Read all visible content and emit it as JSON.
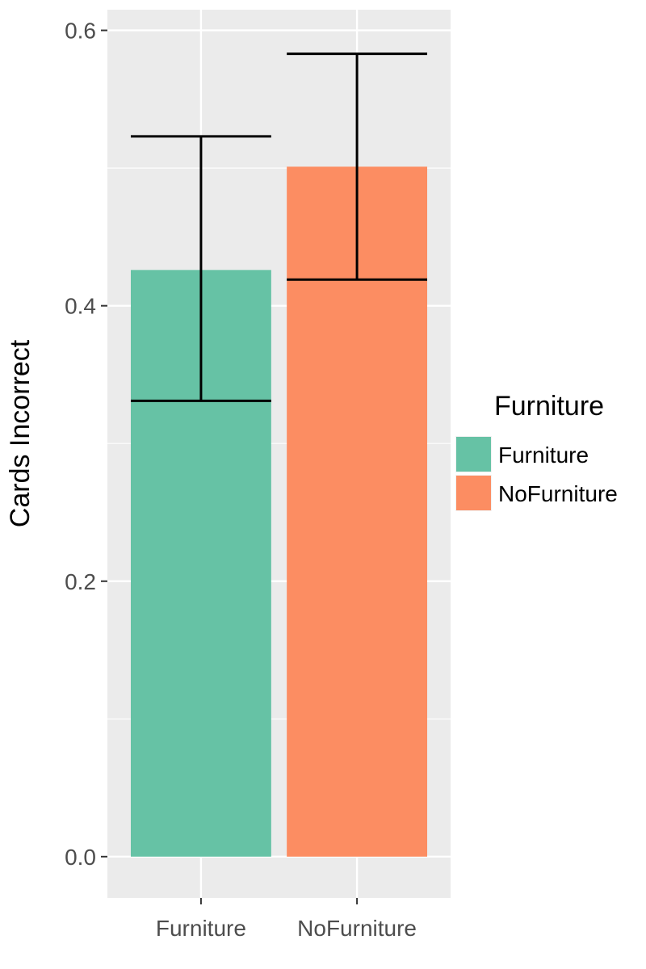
{
  "chart_data": {
    "type": "bar",
    "categories": [
      "Furniture",
      "NoFurniture"
    ],
    "values": [
      0.426,
      0.501
    ],
    "error_bars": [
      {
        "category": "Furniture",
        "lower": 0.331,
        "upper": 0.523
      },
      {
        "category": "NoFurniture",
        "lower": 0.419,
        "upper": 0.583
      }
    ],
    "colors": [
      "#66c2a5",
      "#fc8d62"
    ],
    "xlabel": "",
    "ylabel": "Cards Incorrect",
    "ylim": [
      -0.03,
      0.615
    ],
    "yticks": [
      "0.0",
      "0.2",
      "0.4",
      "0.6"
    ],
    "ytick_values": [
      0,
      0.2,
      0.4,
      0.6
    ],
    "grid": true,
    "legend": {
      "title": "Furniture",
      "position": "right",
      "entries": [
        "Furniture",
        "NoFurniture"
      ]
    },
    "panel_background": "#ebebeb"
  }
}
